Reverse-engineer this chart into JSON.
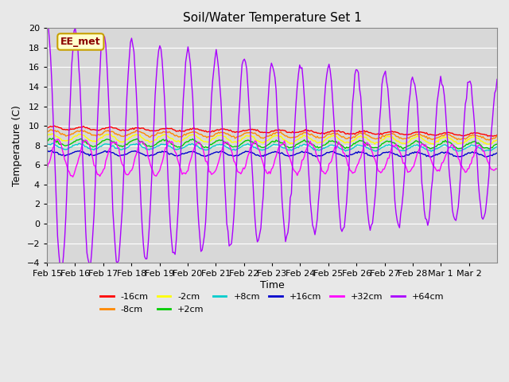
{
  "title": "Soil/Water Temperature Set 1",
  "xlabel": "Time",
  "ylabel": "Temperature (C)",
  "ylim": [
    -4,
    20
  ],
  "background_color": "#e8e8e8",
  "plot_bg_color": "#d8d8d8",
  "grid_color": "#ffffff",
  "annotation_text": "EE_met",
  "annotation_bg": "#ffffcc",
  "annotation_border": "#c8a000",
  "annotation_text_color": "#8b0000",
  "series": {
    "-16cm": {
      "color": "#ff0000"
    },
    "-8cm": {
      "color": "#ff8800"
    },
    "-2cm": {
      "color": "#ffff00"
    },
    "+2cm": {
      "color": "#00cc00"
    },
    "+8cm": {
      "color": "#00cccc"
    },
    "+16cm": {
      "color": "#0000cc"
    },
    "+32cm": {
      "color": "#ff00ff"
    },
    "+64cm": {
      "color": "#aa00ff"
    }
  },
  "xtick_labels": [
    "Feb 15",
    "Feb 16",
    "Feb 17",
    "Feb 18",
    "Feb 19",
    "Feb 20",
    "Feb 21",
    "Feb 22",
    "Feb 23",
    "Feb 24",
    "Feb 25",
    "Feb 26",
    "Feb 27",
    "Feb 28",
    "Mar 1",
    "Mar 2"
  ],
  "legend_order": [
    "-16cm",
    "-8cm",
    "-2cm",
    "+2cm",
    "+8cm",
    "+16cm",
    "+32cm",
    "+64cm"
  ]
}
